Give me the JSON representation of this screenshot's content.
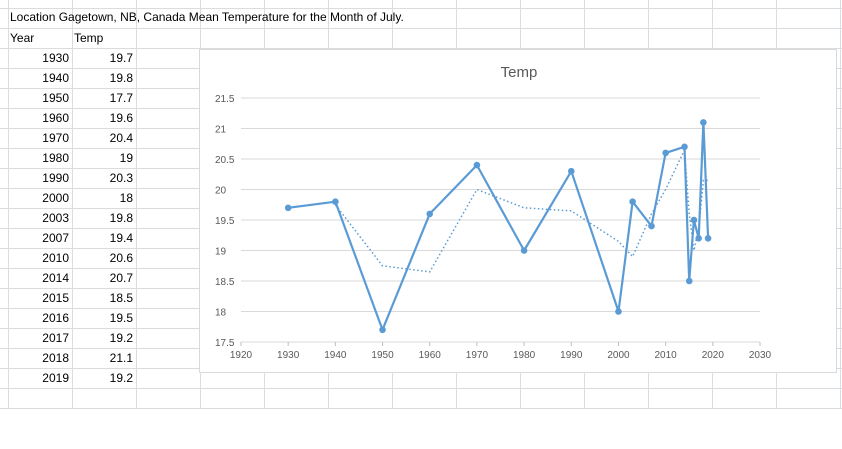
{
  "sheet": {
    "title": "Location Gagetown, NB, Canada Mean Temperature for the Month of July.",
    "col_year": "Year",
    "col_temp": "Temp",
    "rows": [
      {
        "year": "1930",
        "temp": "19.7"
      },
      {
        "year": "1940",
        "temp": "19.8"
      },
      {
        "year": "1950",
        "temp": "17.7"
      },
      {
        "year": "1960",
        "temp": "19.6"
      },
      {
        "year": "1970",
        "temp": "20.4"
      },
      {
        "year": "1980",
        "temp": "19"
      },
      {
        "year": "1990",
        "temp": "20.3"
      },
      {
        "year": "2000",
        "temp": "18"
      },
      {
        "year": "2003",
        "temp": "19.8"
      },
      {
        "year": "2007",
        "temp": "19.4"
      },
      {
        "year": "2010",
        "temp": "20.6"
      },
      {
        "year": "2014",
        "temp": "20.7"
      },
      {
        "year": "2015",
        "temp": "18.5"
      },
      {
        "year": "2016",
        "temp": "19.5"
      },
      {
        "year": "2017",
        "temp": "19.2"
      },
      {
        "year": "2018",
        "temp": "21.1"
      },
      {
        "year": "2019",
        "temp": "19.2"
      }
    ]
  },
  "chart_data": {
    "type": "scatter",
    "title": "Temp",
    "xlabel": "",
    "ylabel": "",
    "xlim": [
      1920,
      2030
    ],
    "ylim": [
      17.5,
      21.5
    ],
    "xticks": [
      "1920",
      "1930",
      "1940",
      "1950",
      "1960",
      "1970",
      "1980",
      "1990",
      "2000",
      "2010",
      "2020",
      "2030"
    ],
    "yticks": [
      "17.5",
      "18",
      "18.5",
      "19",
      "19.5",
      "20",
      "20.5",
      "21",
      "21.5"
    ],
    "grid": true,
    "legend": "none",
    "series": [
      {
        "x": [
          1930,
          1940,
          1950,
          1960,
          1970,
          1980,
          1990,
          2000,
          2003,
          2007,
          2010,
          2014,
          2015,
          2016,
          2017,
          2018,
          2019
        ],
        "y": [
          19.7,
          19.8,
          17.7,
          19.6,
          20.4,
          19.0,
          20.3,
          18.0,
          19.8,
          19.4,
          20.6,
          20.7,
          18.5,
          19.5,
          19.2,
          21.1,
          19.2
        ],
        "color": "#5b9bd5",
        "style": "solid-with-markers"
      }
    ],
    "trendline": {
      "kind": "moving-average",
      "period": 2,
      "color": "#5b9bd5",
      "style": "dotted"
    }
  }
}
